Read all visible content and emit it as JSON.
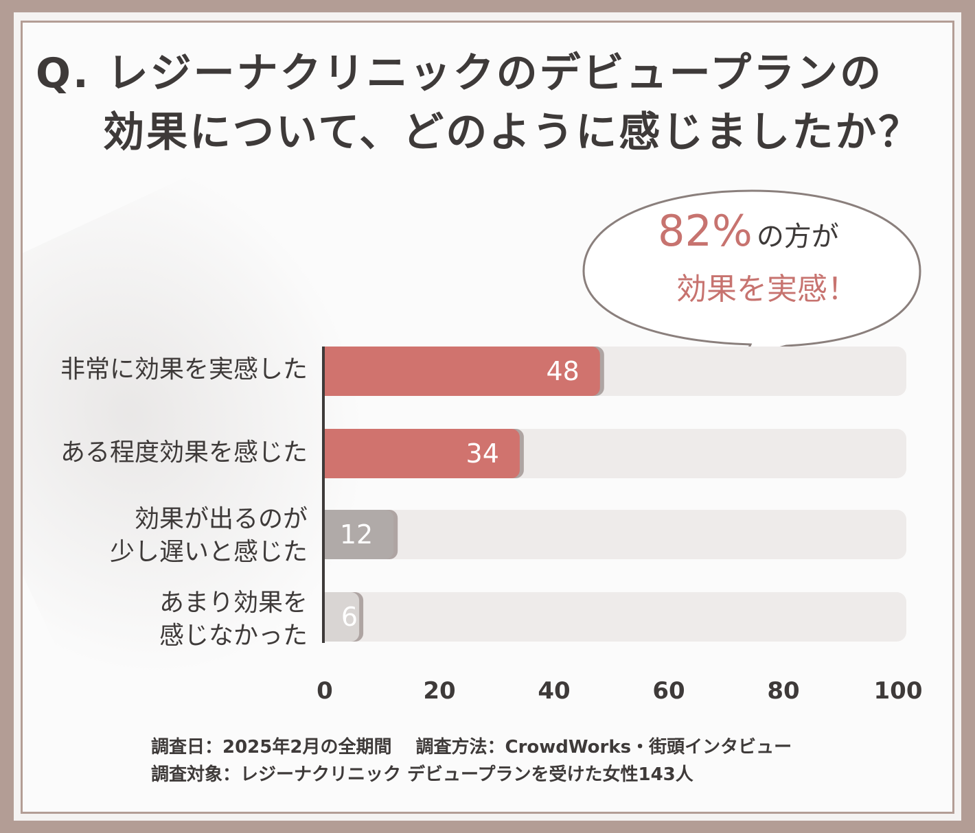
{
  "title": {
    "line1": "Q. レジーナクリニックのデビュープランの",
    "line2": "効果について、どのように感じましたか？"
  },
  "callout": {
    "percent": "82%",
    "suffix": "の方が",
    "line2": "効果を実感！"
  },
  "colors": {
    "accent_bar": "#d0736e",
    "muted_bar": "#b0aaa8",
    "track": "#eeebea",
    "frame": "#b39d95",
    "callout_text": "#c7736f"
  },
  "chart_data": {
    "type": "bar",
    "orientation": "horizontal",
    "categories": [
      "非常に効果を実感した",
      "ある程度効果を感じた",
      "効果が出るのが\n少し遅いと感じた",
      "あまり効果を\n感じなかった"
    ],
    "values": [
      48,
      34,
      12,
      6
    ],
    "bar_colors": [
      "#d0736e",
      "#d0736e",
      "#b0aaa8",
      "#d9d5d3"
    ],
    "label_colors": [
      "#ffffff",
      "#ffffff",
      "#ffffff",
      "#ffffff"
    ],
    "xlim": [
      0,
      100
    ],
    "xticks": [
      0,
      20,
      40,
      60,
      80,
      100
    ],
    "xlabel": "",
    "ylabel": "",
    "grid": false,
    "legend": "none"
  },
  "footer": {
    "line1": "調査日：2025年2月の全期間　 調査方法：CrowdWorks・街頭インタビュー",
    "line2": "調査対象：レジーナクリニック デビュープランを受けた女性143人"
  }
}
